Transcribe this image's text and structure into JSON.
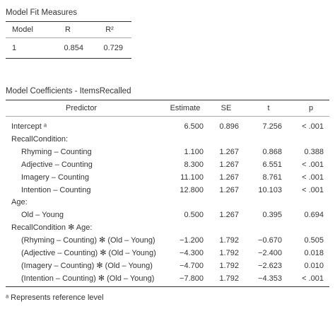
{
  "fit": {
    "title": "Model Fit Measures",
    "headers": [
      "Model",
      "R",
      "R²"
    ],
    "rows": [
      [
        "1",
        "0.854",
        "0.729"
      ]
    ]
  },
  "coef": {
    "title": "Model Coefficients - ItemsRecalled",
    "headers": [
      "Predictor",
      "Estimate",
      "SE",
      "t",
      "p"
    ],
    "rows": [
      {
        "label": "Intercept ᵃ",
        "indent": 0,
        "values": [
          "6.500",
          "0.896",
          "7.256",
          "< .001"
        ]
      },
      {
        "label": "RecallCondition:",
        "indent": 0,
        "values": [
          "",
          "",
          "",
          ""
        ]
      },
      {
        "label": "Rhyming – Counting",
        "indent": 1,
        "values": [
          "1.100",
          "1.267",
          "0.868",
          "0.388"
        ]
      },
      {
        "label": "Adjective – Counting",
        "indent": 1,
        "values": [
          "8.300",
          "1.267",
          "6.551",
          "< .001"
        ]
      },
      {
        "label": "Imagery – Counting",
        "indent": 1,
        "values": [
          "11.100",
          "1.267",
          "8.761",
          "< .001"
        ]
      },
      {
        "label": "Intention – Counting",
        "indent": 1,
        "values": [
          "12.800",
          "1.267",
          "10.103",
          "< .001"
        ]
      },
      {
        "label": "Age:",
        "indent": 0,
        "values": [
          "",
          "",
          "",
          ""
        ]
      },
      {
        "label": "Old – Young",
        "indent": 1,
        "values": [
          "0.500",
          "1.267",
          "0.395",
          "0.694"
        ]
      },
      {
        "label": "RecallCondition ✻ Age:",
        "indent": 0,
        "values": [
          "",
          "",
          "",
          ""
        ]
      },
      {
        "label": "(Rhyming – Counting) ✻ (Old – Young)",
        "indent": 1,
        "values": [
          "−1.200",
          "1.792",
          "−0.670",
          "0.505"
        ]
      },
      {
        "label": "(Adjective – Counting) ✻ (Old – Young)",
        "indent": 1,
        "values": [
          "−4.300",
          "1.792",
          "−2.400",
          "0.018"
        ]
      },
      {
        "label": "(Imagery – Counting) ✻ (Old – Young)",
        "indent": 1,
        "values": [
          "−4.700",
          "1.792",
          "−2.623",
          "0.010"
        ]
      },
      {
        "label": "(Intention – Counting) ✻ (Old – Young)",
        "indent": 1,
        "values": [
          "−7.800",
          "1.792",
          "−4.353",
          "< .001"
        ]
      }
    ]
  },
  "footnote": "ᵃ Represents reference level"
}
